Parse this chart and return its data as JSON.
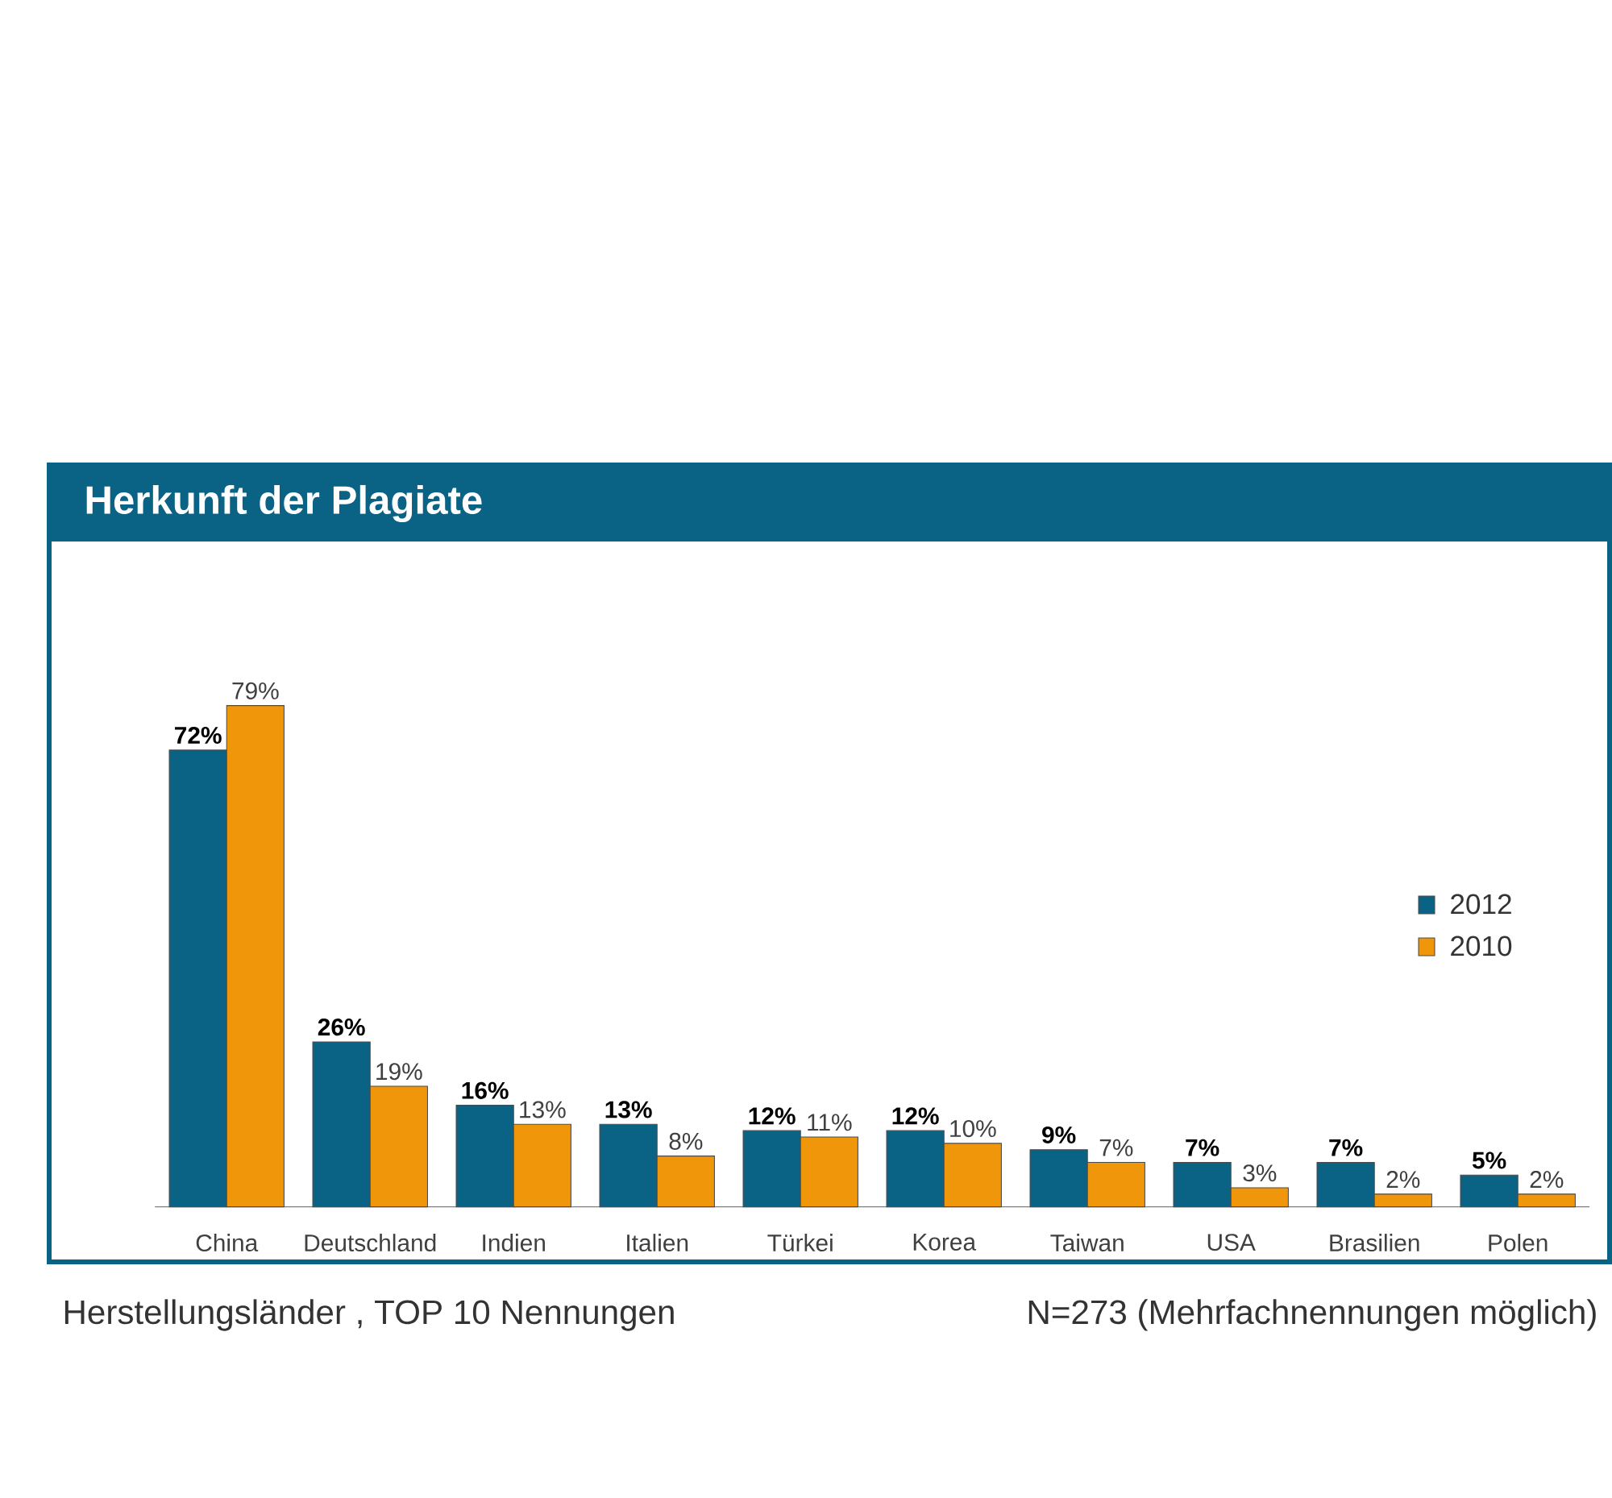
{
  "chart_data": {
    "type": "bar",
    "title": "Herkunft der Plagiate",
    "categories": [
      "China",
      "Deutschland",
      "Indien",
      "Italien",
      "Türkei",
      "Korea",
      "Taiwan",
      "USA",
      "Brasilien",
      "Polen"
    ],
    "series": [
      {
        "name": "2012",
        "color": "#0a6285",
        "values": [
          72,
          26,
          16,
          13,
          12,
          12,
          9,
          7,
          7,
          5
        ],
        "value_labels": [
          "72%",
          "26%",
          "16%",
          "13%",
          "12%",
          "12%",
          "9%",
          "7%",
          "7%",
          "5%"
        ]
      },
      {
        "name": "2010",
        "color": "#f0960a",
        "values": [
          79,
          19,
          13,
          8,
          11,
          10,
          7,
          3,
          2,
          2
        ],
        "value_labels": [
          "79%",
          "19%",
          "13%",
          "8%",
          "11%",
          "10%",
          "7%",
          "3%",
          "2%",
          "2%"
        ]
      }
    ],
    "legend": "right",
    "annotations": [
      "Herstellungsländer , TOP 10 Nennungen",
      "N=273 (Mehrfachnennungen möglich)"
    ]
  }
}
